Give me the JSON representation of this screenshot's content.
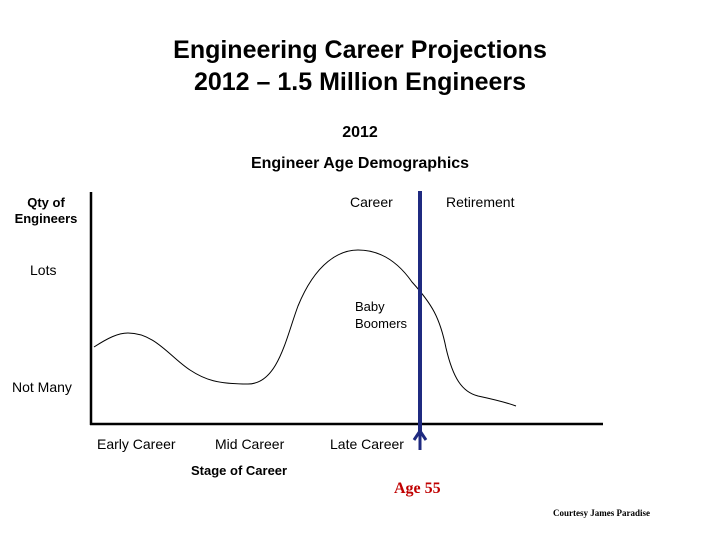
{
  "title": {
    "line1": "Engineering Career Projections",
    "line2": "2012 – 1.5 Million Engineers"
  },
  "subtitle": {
    "year": "2012",
    "heading": "Engineer Age Demographics"
  },
  "y_axis": {
    "title_line1": "Qty of",
    "title_line2": "Engineers",
    "high_label": "Lots",
    "low_label": "Not Many"
  },
  "regions": {
    "career": "Career",
    "retirement": "Retirement"
  },
  "annotation": {
    "line1": "Baby",
    "line2": "Boomers"
  },
  "x_axis": {
    "ticks": [
      "Early Career",
      "Mid Career",
      "Late Career"
    ],
    "title": "Stage of Career"
  },
  "marker": {
    "label": "Age 55",
    "color": "#c00000"
  },
  "credit": "Courtesy James Paradise",
  "colors": {
    "divider": "#1f2a80",
    "axis": "#000000",
    "curve": "#000000"
  }
}
